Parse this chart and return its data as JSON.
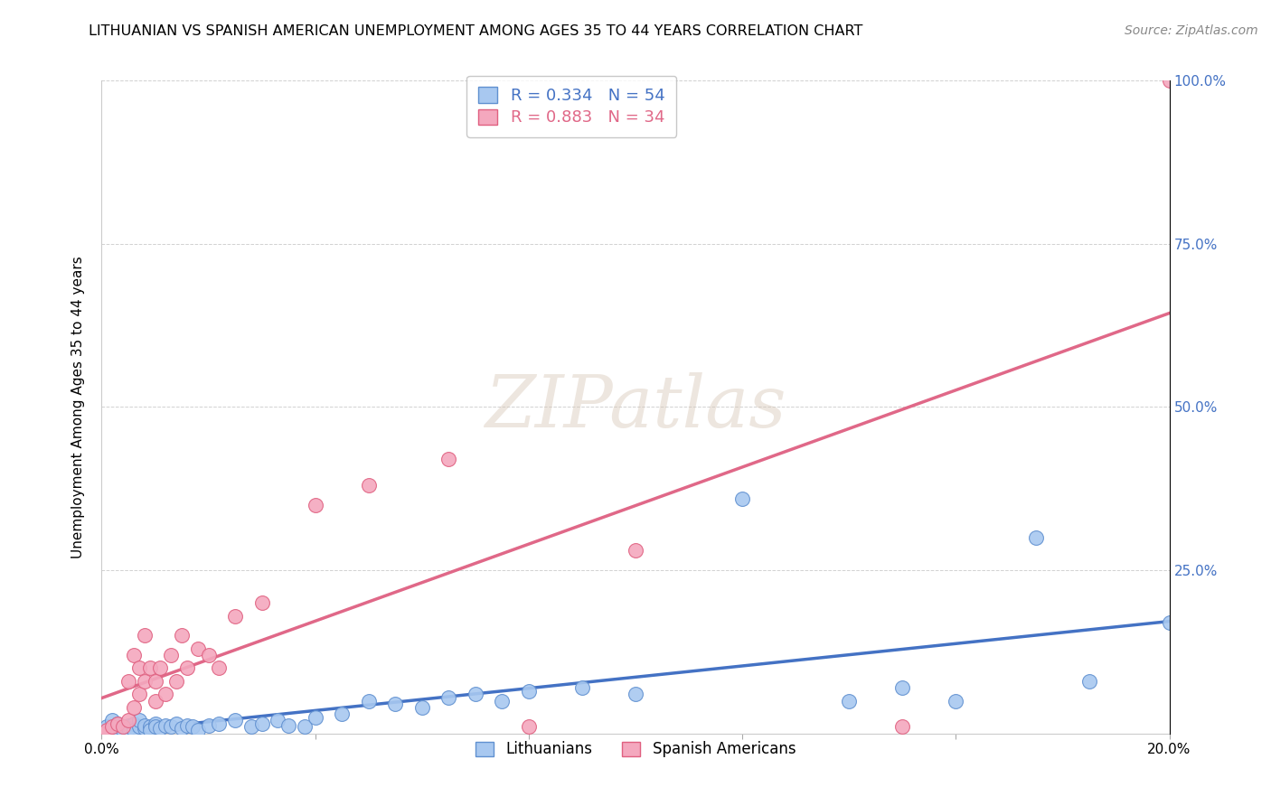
{
  "title": "LITHUANIAN VS SPANISH AMERICAN UNEMPLOYMENT AMONG AGES 35 TO 44 YEARS CORRELATION CHART",
  "source": "Source: ZipAtlas.com",
  "ylabel": "Unemployment Among Ages 35 to 44 years",
  "R_lit": 0.334,
  "N_lit": 54,
  "R_span": 0.883,
  "N_span": 34,
  "xlim": [
    0.0,
    0.2
  ],
  "ylim": [
    0.0,
    1.0
  ],
  "xticks": [
    0.0,
    0.04,
    0.08,
    0.12,
    0.16,
    0.2
  ],
  "xticklabels": [
    "0.0%",
    "",
    "",
    "",
    "",
    "20.0%"
  ],
  "yticks": [
    0.0,
    0.25,
    0.5,
    0.75,
    1.0
  ],
  "right_yticklabels": [
    "",
    "25.0%",
    "50.0%",
    "75.0%",
    "100.0%"
  ],
  "lit_color": "#A8C8F0",
  "span_color": "#F4A8BE",
  "lit_edge_color": "#6090D0",
  "span_edge_color": "#E06080",
  "lit_line_color": "#4472C4",
  "span_line_color": "#E06888",
  "watermark": "ZIPatlas",
  "lit_x": [
    0.0,
    0.001,
    0.002,
    0.002,
    0.003,
    0.003,
    0.004,
    0.004,
    0.005,
    0.005,
    0.006,
    0.006,
    0.007,
    0.007,
    0.008,
    0.008,
    0.009,
    0.009,
    0.01,
    0.01,
    0.011,
    0.012,
    0.013,
    0.014,
    0.015,
    0.016,
    0.017,
    0.018,
    0.02,
    0.022,
    0.025,
    0.028,
    0.03,
    0.033,
    0.035,
    0.038,
    0.04,
    0.045,
    0.05,
    0.055,
    0.06,
    0.065,
    0.07,
    0.075,
    0.08,
    0.09,
    0.1,
    0.12,
    0.14,
    0.15,
    0.16,
    0.175,
    0.185,
    0.2
  ],
  "lit_y": [
    0.0,
    0.01,
    0.005,
    0.02,
    0.008,
    0.015,
    0.01,
    0.005,
    0.012,
    0.008,
    0.015,
    0.005,
    0.01,
    0.02,
    0.008,
    0.012,
    0.01,
    0.005,
    0.015,
    0.01,
    0.008,
    0.012,
    0.01,
    0.015,
    0.008,
    0.012,
    0.01,
    0.005,
    0.012,
    0.015,
    0.02,
    0.01,
    0.015,
    0.02,
    0.012,
    0.01,
    0.025,
    0.03,
    0.05,
    0.045,
    0.04,
    0.055,
    0.06,
    0.05,
    0.065,
    0.07,
    0.06,
    0.36,
    0.05,
    0.07,
    0.05,
    0.3,
    0.08,
    0.17
  ],
  "span_x": [
    0.0,
    0.001,
    0.002,
    0.003,
    0.004,
    0.005,
    0.005,
    0.006,
    0.006,
    0.007,
    0.007,
    0.008,
    0.008,
    0.009,
    0.01,
    0.01,
    0.011,
    0.012,
    0.013,
    0.014,
    0.015,
    0.016,
    0.018,
    0.02,
    0.022,
    0.025,
    0.03,
    0.04,
    0.05,
    0.065,
    0.08,
    0.1,
    0.15,
    0.2
  ],
  "span_y": [
    0.0,
    0.005,
    0.01,
    0.015,
    0.01,
    0.02,
    0.08,
    0.04,
    0.12,
    0.06,
    0.1,
    0.08,
    0.15,
    0.1,
    0.05,
    0.08,
    0.1,
    0.06,
    0.12,
    0.08,
    0.15,
    0.1,
    0.13,
    0.12,
    0.1,
    0.18,
    0.2,
    0.35,
    0.38,
    0.42,
    0.01,
    0.28,
    0.01,
    1.0
  ],
  "title_fontsize": 11.5,
  "axis_label_fontsize": 11,
  "tick_fontsize": 11,
  "legend_fontsize": 13
}
